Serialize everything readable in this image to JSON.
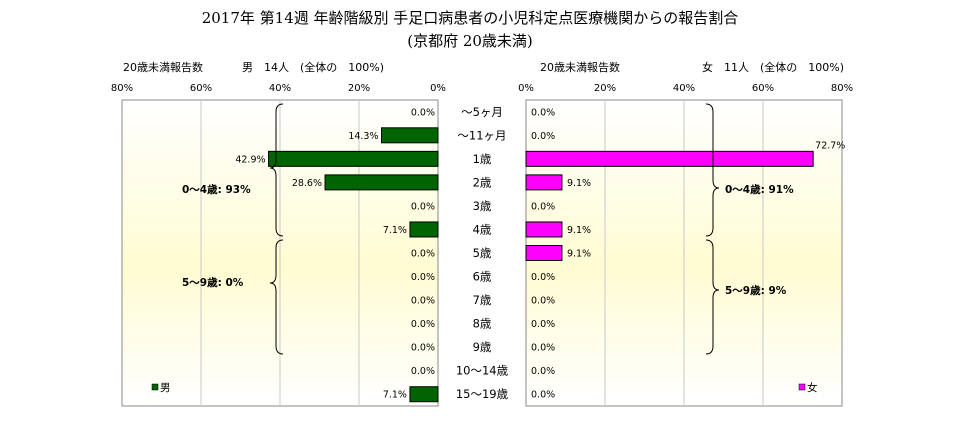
{
  "chart_data": {
    "type": "bar",
    "title": "2017年 第14週 年齢階級別 手足口病患者の小児科定点医療機関からの報告割合",
    "subtitle": "(京都府 20歳未満)",
    "categories": [
      "～5ヶ月",
      "～11ヶ月",
      "1歳",
      "2歳",
      "3歳",
      "4歳",
      "5歳",
      "6歳",
      "7歳",
      "8歳",
      "9歳",
      "10～14歳",
      "15～19歳"
    ],
    "xlim": [
      0,
      80
    ],
    "x_ticks": [
      "80%",
      "60%",
      "40%",
      "20%",
      "0%"
    ],
    "x_ticks_right": [
      "0%",
      "20%",
      "40%",
      "60%",
      "80%"
    ],
    "series": [
      {
        "name": "男",
        "color": "#006400",
        "values": [
          0.0,
          14.3,
          42.9,
          28.6,
          0.0,
          7.1,
          0.0,
          0.0,
          0.0,
          0.0,
          0.0,
          0.0,
          7.1
        ],
        "labels": [
          "0.0%",
          "14.3%",
          "42.9%",
          "28.6%",
          "0.0%",
          "7.1%",
          "0.0%",
          "0.0%",
          "0.0%",
          "0.0%",
          "0.0%",
          "0.0%",
          "7.1%"
        ]
      },
      {
        "name": "女",
        "color": "#FF00FF",
        "values": [
          0.0,
          0.0,
          72.7,
          9.1,
          0.0,
          9.1,
          9.1,
          0.0,
          0.0,
          0.0,
          0.0,
          0.0,
          0.0
        ],
        "labels": [
          "0.0%",
          "0.0%",
          "72.7%",
          "9.1%",
          "0.0%",
          "9.1%",
          "9.1%",
          "0.0%",
          "0.0%",
          "0.0%",
          "0.0%",
          "0.0%",
          "0.0%"
        ]
      }
    ],
    "male_panel": {
      "header_left": "20歳未満報告数",
      "header_right": "男　14人　(全体の　100%)",
      "group_0_4": "0～4歳: 93%",
      "group_5_9": "5～9歳: 0%",
      "legend": "男"
    },
    "female_panel": {
      "header_left": "20歳未満報告数",
      "header_right": "女　11人　(全体の　100%)",
      "group_0_4": "0～4歳: 91%",
      "group_5_9": "5～9歳: 9%",
      "legend": "女"
    },
    "grid": true,
    "legend_position": "bottom-left / bottom-right"
  }
}
